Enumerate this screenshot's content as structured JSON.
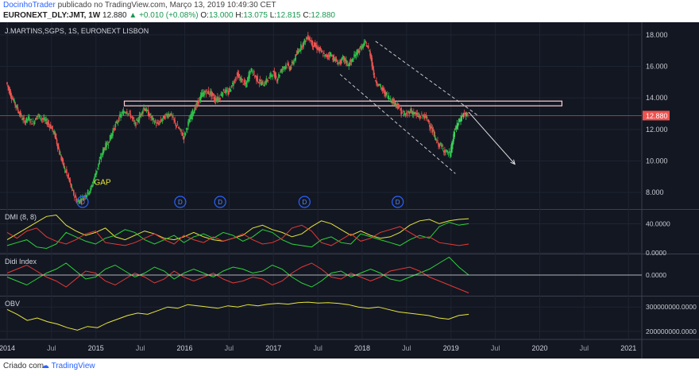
{
  "header": {
    "author": "DocinhoTrader",
    "published_text": "publicado no TradingView.com, Março 13, 2019 10:49:30 CET",
    "symbol": "EURONEXT_DLY:JMT, 1W",
    "last": "12.880",
    "change_arrow": "▲",
    "change": "+0.010 (+0.08%)",
    "open_label": "O:",
    "open": "13.000",
    "high_label": "H:",
    "high": "13.075",
    "low_label": "L:",
    "low": "12.815",
    "close_label": "C:",
    "close": "12.880"
  },
  "footer": {
    "created_with": "Criado com",
    "brand": "TradingView"
  },
  "colors": {
    "background": "#131722",
    "grid": "#1f2433",
    "up_candle": "#26a69a",
    "up_candle_bright": "#3bd65b",
    "down_candle": "#ef5350",
    "resistance_box": "#ffd1d1",
    "price_label_bg": "#ef5350",
    "dmi_plus": "#2bd43a",
    "dmi_minus": "#e53935",
    "adx": "#e6e63a",
    "obv": "#e6e63a",
    "dividend_marker": "#2962ff",
    "annotation": "#e6e63a"
  },
  "chart_data": [
    {
      "pane": "price",
      "type": "candlestick",
      "title": "J.MARTINS,SGPS, 1S, EURONEXT LISBON",
      "x_axis_labels": [
        "2014",
        "Jul",
        "2015",
        "Jul",
        "2016",
        "Jul",
        "2017",
        "Jul",
        "2018",
        "Jul",
        "2019",
        "Jul",
        "2020",
        "Jul",
        "2021"
      ],
      "y_ticks": [
        "18.000",
        "16.000",
        "14.000",
        "12.000",
        "10.000",
        "8.000"
      ],
      "ylim": [
        7.0,
        18.6
      ],
      "last_price_label": "12.880",
      "annotations": [
        {
          "text": "GAP",
          "x": 2014.98,
          "y": 8.5
        }
      ],
      "dividend_markers": [
        {
          "label": "D",
          "x": 2014.85
        },
        {
          "label": "D",
          "x": 2015.95
        },
        {
          "label": "D",
          "x": 2016.4
        },
        {
          "label": "D",
          "x": 2017.35
        },
        {
          "label": "D",
          "x": 2018.4
        }
      ],
      "resistance_zone": {
        "x_start": 2015.32,
        "x_end": 2020.25,
        "y_low": 13.5,
        "y_high": 13.8
      },
      "channel_lines": [
        {
          "x1": 2018.15,
          "y1": 17.6,
          "x2": 2019.3,
          "y2": 12.9
        },
        {
          "x1": 2017.75,
          "y1": 15.5,
          "x2": 2019.05,
          "y2": 9.2
        }
      ],
      "projection_arrow": {
        "x1": 2019.2,
        "y1": 13.1,
        "x2": 2019.72,
        "y2": 9.8
      },
      "horizontal_line": {
        "y": 12.88
      },
      "close_path": [
        [
          2014.0,
          15.0
        ],
        [
          2014.05,
          14.2
        ],
        [
          2014.1,
          13.6
        ],
        [
          2014.15,
          13.0
        ],
        [
          2014.2,
          12.5
        ],
        [
          2014.25,
          12.7
        ],
        [
          2014.3,
          12.4
        ],
        [
          2014.35,
          12.9
        ],
        [
          2014.4,
          12.7
        ],
        [
          2014.45,
          12.5
        ],
        [
          2014.5,
          12.2
        ],
        [
          2014.55,
          11.6
        ],
        [
          2014.6,
          10.5
        ],
        [
          2014.65,
          9.6
        ],
        [
          2014.7,
          8.9
        ],
        [
          2014.75,
          8.0
        ],
        [
          2014.8,
          7.4
        ],
        [
          2014.85,
          7.6
        ],
        [
          2014.9,
          7.9
        ],
        [
          2014.95,
          8.2
        ],
        [
          2015.0,
          9.1
        ],
        [
          2015.05,
          10.0
        ],
        [
          2015.1,
          10.8
        ],
        [
          2015.15,
          11.2
        ],
        [
          2015.2,
          11.9
        ],
        [
          2015.25,
          12.5
        ],
        [
          2015.3,
          13.0
        ],
        [
          2015.35,
          13.2
        ],
        [
          2015.4,
          12.9
        ],
        [
          2015.45,
          12.3
        ],
        [
          2015.5,
          12.8
        ],
        [
          2015.55,
          13.4
        ],
        [
          2015.6,
          13.0
        ],
        [
          2015.65,
          12.6
        ],
        [
          2015.7,
          12.3
        ],
        [
          2015.75,
          12.6
        ],
        [
          2015.8,
          12.9
        ],
        [
          2015.85,
          13.0
        ],
        [
          2015.9,
          12.4
        ],
        [
          2015.95,
          12.0
        ],
        [
          2016.0,
          11.5
        ],
        [
          2016.05,
          12.4
        ],
        [
          2016.1,
          13.1
        ],
        [
          2016.15,
          13.6
        ],
        [
          2016.2,
          14.2
        ],
        [
          2016.25,
          14.4
        ],
        [
          2016.3,
          14.3
        ],
        [
          2016.35,
          13.9
        ],
        [
          2016.4,
          14.0
        ],
        [
          2016.45,
          14.5
        ],
        [
          2016.5,
          14.3
        ],
        [
          2016.55,
          14.9
        ],
        [
          2016.6,
          15.5
        ],
        [
          2016.65,
          15.1
        ],
        [
          2016.7,
          14.8
        ],
        [
          2016.75,
          15.8
        ],
        [
          2016.8,
          15.4
        ],
        [
          2016.85,
          15.0
        ],
        [
          2016.9,
          14.9
        ],
        [
          2016.95,
          15.2
        ],
        [
          2017.0,
          15.6
        ],
        [
          2017.05,
          15.2
        ],
        [
          2017.1,
          15.8
        ],
        [
          2017.15,
          16.1
        ],
        [
          2017.2,
          15.9
        ],
        [
          2017.25,
          16.5
        ],
        [
          2017.3,
          17.1
        ],
        [
          2017.35,
          17.5
        ],
        [
          2017.4,
          17.9
        ],
        [
          2017.45,
          17.4
        ],
        [
          2017.5,
          17.2
        ],
        [
          2017.55,
          16.9
        ],
        [
          2017.6,
          16.6
        ],
        [
          2017.65,
          16.8
        ],
        [
          2017.7,
          16.4
        ],
        [
          2017.75,
          16.2
        ],
        [
          2017.8,
          16.5
        ],
        [
          2017.85,
          16.1
        ],
        [
          2017.9,
          16.4
        ],
        [
          2017.95,
          16.9
        ],
        [
          2018.0,
          17.2
        ],
        [
          2018.05,
          17.5
        ],
        [
          2018.1,
          16.8
        ],
        [
          2018.15,
          15.2
        ],
        [
          2018.2,
          14.8
        ],
        [
          2018.25,
          14.4
        ],
        [
          2018.3,
          14.1
        ],
        [
          2018.35,
          13.8
        ],
        [
          2018.4,
          13.6
        ],
        [
          2018.45,
          13.1
        ],
        [
          2018.5,
          12.9
        ],
        [
          2018.55,
          13.2
        ],
        [
          2018.6,
          13.0
        ],
        [
          2018.65,
          12.8
        ],
        [
          2018.7,
          12.9
        ],
        [
          2018.75,
          12.6
        ],
        [
          2018.8,
          11.9
        ],
        [
          2018.85,
          11.2
        ],
        [
          2018.9,
          10.9
        ],
        [
          2018.95,
          10.6
        ],
        [
          2019.0,
          10.4
        ],
        [
          2019.05,
          11.9
        ],
        [
          2019.1,
          12.5
        ],
        [
          2019.15,
          13.0
        ],
        [
          2019.2,
          12.88
        ]
      ]
    },
    {
      "pane": "dmi",
      "type": "line",
      "title": "DMI (8, 8)",
      "y_ticks": [
        "40.0000",
        "0.0000"
      ],
      "ylim": [
        0,
        58
      ],
      "series": [
        {
          "color_key": "adx",
          "values": [
            18,
            26,
            34,
            42,
            50,
            52,
            38,
            30,
            24,
            28,
            34,
            22,
            18,
            24,
            30,
            26,
            20,
            18,
            22,
            28,
            22,
            18,
            16,
            20,
            24,
            34,
            38,
            32,
            28,
            22,
            26,
            36,
            44,
            40,
            32,
            24,
            30,
            24,
            20,
            22,
            28,
            38,
            44,
            46,
            40,
            44,
            46,
            47
          ]
        },
        {
          "color_key": "dmi_plus",
          "values": [
            10,
            14,
            18,
            8,
            6,
            12,
            28,
            22,
            16,
            12,
            20,
            24,
            32,
            28,
            18,
            12,
            18,
            24,
            14,
            22,
            26,
            20,
            28,
            24,
            16,
            22,
            32,
            28,
            18,
            12,
            10,
            8,
            18,
            22,
            14,
            12,
            26,
            22,
            18,
            14,
            10,
            18,
            24,
            20,
            36,
            42,
            38,
            40
          ]
        },
        {
          "color_key": "dmi_minus",
          "values": [
            28,
            20,
            30,
            34,
            22,
            16,
            12,
            18,
            26,
            30,
            14,
            12,
            10,
            14,
            20,
            26,
            18,
            12,
            24,
            18,
            14,
            22,
            16,
            20,
            26,
            18,
            12,
            14,
            20,
            34,
            38,
            30,
            14,
            10,
            18,
            26,
            16,
            20,
            28,
            32,
            36,
            28,
            20,
            22,
            14,
            12,
            10,
            12
          ]
        }
      ]
    },
    {
      "pane": "didi",
      "type": "line",
      "title": "Didi Index",
      "y_ticks": [
        "0.0000"
      ],
      "ylim": [
        -1,
        1
      ],
      "series": [
        {
          "color_key": "dmi_plus",
          "values": [
            -0.1,
            -0.3,
            -0.5,
            -0.2,
            0.1,
            0.3,
            0.6,
            0.2,
            -0.2,
            -0.1,
            0.3,
            0.5,
            0.2,
            -0.1,
            0.1,
            0.4,
            0.2,
            -0.2,
            0.1,
            0.3,
            0.1,
            -0.1,
            0.2,
            0.4,
            0.3,
            0.1,
            0.2,
            0.5,
            0.3,
            -0.1,
            -0.4,
            -0.6,
            -0.3,
            0.1,
            0.2,
            -0.1,
            0.1,
            0.3,
            0.1,
            -0.2,
            -0.3,
            -0.1,
            0.1,
            0.3,
            0.6,
            0.9,
            0.4,
            0.0
          ]
        },
        {
          "color_key": "dmi_minus",
          "values": [
            0.1,
            0.3,
            0.5,
            0.2,
            -0.1,
            -0.3,
            -0.6,
            -0.2,
            0.2,
            0.1,
            -0.3,
            -0.5,
            -0.2,
            0.1,
            -0.1,
            -0.4,
            -0.2,
            0.2,
            -0.1,
            -0.3,
            -0.1,
            0.1,
            -0.2,
            -0.4,
            -0.3,
            -0.1,
            -0.2,
            -0.5,
            -0.3,
            0.1,
            0.4,
            0.6,
            0.3,
            -0.1,
            -0.2,
            0.1,
            -0.1,
            -0.3,
            -0.1,
            0.2,
            0.3,
            0.4,
            0.2,
            -0.1,
            -0.3,
            -0.5,
            -0.7,
            -0.9
          ]
        }
      ]
    },
    {
      "pane": "obv",
      "type": "line",
      "title": "OBV",
      "y_ticks": [
        "300000000.0000",
        "200000000.0000"
      ],
      "ylim": [
        170000000,
        340000000
      ],
      "series": [
        {
          "color_key": "obv",
          "values": [
            290000000,
            270000000,
            245000000,
            255000000,
            240000000,
            230000000,
            215000000,
            205000000,
            220000000,
            215000000,
            235000000,
            250000000,
            265000000,
            275000000,
            270000000,
            285000000,
            300000000,
            295000000,
            310000000,
            305000000,
            300000000,
            295000000,
            305000000,
            300000000,
            310000000,
            305000000,
            312000000,
            315000000,
            312000000,
            318000000,
            320000000,
            316000000,
            318000000,
            315000000,
            310000000,
            300000000,
            295000000,
            300000000,
            290000000,
            280000000,
            275000000,
            270000000,
            265000000,
            255000000,
            250000000,
            265000000,
            270000000
          ]
        }
      ]
    }
  ]
}
